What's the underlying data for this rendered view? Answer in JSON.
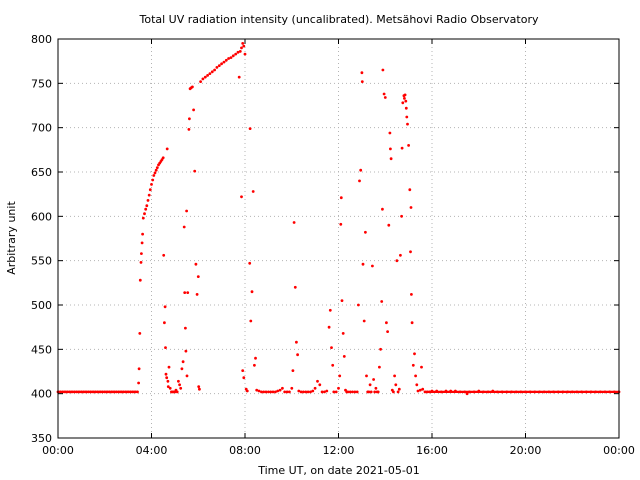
{
  "chart_data": {
    "type": "scatter",
    "title": "Total UV radiation intensity (uncalibrated). Metsähovi Radio Observatory",
    "xlabel": "Time UT, on date 2021-05-01",
    "ylabel": "Arbitrary unit",
    "x_unit": "hours",
    "xlim": [
      0,
      24
    ],
    "ylim": [
      350,
      800
    ],
    "x_ticks": [
      0,
      4,
      8,
      12,
      16,
      20,
      24
    ],
    "x_tick_labels": [
      "00:00",
      "04:00",
      "08:00",
      "12:00",
      "16:00",
      "20:00",
      "00:00"
    ],
    "y_ticks": [
      350,
      400,
      450,
      500,
      550,
      600,
      650,
      700,
      750,
      800
    ],
    "y_tick_labels": [
      "350",
      "400",
      "450",
      "500",
      "550",
      "600",
      "650",
      "700",
      "750",
      "800"
    ],
    "grid": true,
    "legend": "none",
    "marker_color": "#ff0000",
    "series": [
      {
        "points": [
          [
            0.0,
            402
          ],
          [
            0.1,
            402
          ],
          [
            0.2,
            402
          ],
          [
            0.3,
            402
          ],
          [
            0.4,
            402
          ],
          [
            0.5,
            402
          ],
          [
            0.6,
            402
          ],
          [
            0.7,
            402
          ],
          [
            0.8,
            402
          ],
          [
            0.9,
            402
          ],
          [
            1.0,
            402
          ],
          [
            1.1,
            402
          ],
          [
            1.2,
            402
          ],
          [
            1.3,
            402
          ],
          [
            1.4,
            402
          ],
          [
            1.5,
            402
          ],
          [
            1.6,
            402
          ],
          [
            1.7,
            402
          ],
          [
            1.8,
            402
          ],
          [
            1.9,
            402
          ],
          [
            2.0,
            402
          ],
          [
            2.1,
            402
          ],
          [
            2.2,
            402
          ],
          [
            2.3,
            402
          ],
          [
            2.4,
            402
          ],
          [
            2.5,
            402
          ],
          [
            2.6,
            402
          ],
          [
            2.7,
            402
          ],
          [
            2.8,
            402
          ],
          [
            2.9,
            402
          ],
          [
            3.0,
            402
          ],
          [
            3.1,
            402
          ],
          [
            3.2,
            402
          ],
          [
            3.3,
            402
          ],
          [
            3.4,
            402
          ],
          [
            3.45,
            412
          ],
          [
            3.47,
            428
          ],
          [
            3.5,
            468
          ],
          [
            3.52,
            528
          ],
          [
            3.55,
            548
          ],
          [
            3.57,
            558
          ],
          [
            3.6,
            570
          ],
          [
            3.62,
            580
          ],
          [
            3.65,
            598
          ],
          [
            3.7,
            603
          ],
          [
            3.75,
            608
          ],
          [
            3.8,
            612
          ],
          [
            3.85,
            618
          ],
          [
            3.9,
            624
          ],
          [
            3.95,
            630
          ],
          [
            4.0,
            636
          ],
          [
            4.05,
            641
          ],
          [
            4.1,
            646
          ],
          [
            4.15,
            649
          ],
          [
            4.2,
            652
          ],
          [
            4.25,
            655
          ],
          [
            4.3,
            658
          ],
          [
            4.35,
            660
          ],
          [
            4.4,
            662
          ],
          [
            4.45,
            664
          ],
          [
            4.5,
            666
          ],
          [
            4.52,
            556
          ],
          [
            4.55,
            480
          ],
          [
            4.58,
            498
          ],
          [
            4.6,
            452
          ],
          [
            4.62,
            422
          ],
          [
            4.65,
            418
          ],
          [
            4.67,
            676
          ],
          [
            4.7,
            414
          ],
          [
            4.72,
            408
          ],
          [
            4.75,
            430
          ],
          [
            4.8,
            406
          ],
          [
            4.85,
            402
          ],
          [
            4.9,
            402
          ],
          [
            4.95,
            402
          ],
          [
            5.0,
            402
          ],
          [
            5.05,
            404
          ],
          [
            5.1,
            402
          ],
          [
            5.15,
            414
          ],
          [
            5.2,
            410
          ],
          [
            5.25,
            406
          ],
          [
            5.3,
            428
          ],
          [
            5.35,
            436
          ],
          [
            5.4,
            588
          ],
          [
            5.42,
            514
          ],
          [
            5.45,
            474
          ],
          [
            5.47,
            448
          ],
          [
            5.5,
            606
          ],
          [
            5.52,
            420
          ],
          [
            5.55,
            514
          ],
          [
            5.6,
            698
          ],
          [
            5.62,
            710
          ],
          [
            5.65,
            744
          ],
          [
            5.7,
            745
          ],
          [
            5.75,
            746
          ],
          [
            5.8,
            720
          ],
          [
            5.85,
            651
          ],
          [
            5.9,
            546
          ],
          [
            5.95,
            512
          ],
          [
            6.0,
            532
          ],
          [
            6.02,
            408
          ],
          [
            6.05,
            405
          ],
          [
            6.1,
            752
          ],
          [
            6.2,
            755
          ],
          [
            6.3,
            757
          ],
          [
            6.4,
            759
          ],
          [
            6.5,
            761
          ],
          [
            6.6,
            763
          ],
          [
            6.7,
            765
          ],
          [
            6.8,
            768
          ],
          [
            6.9,
            770
          ],
          [
            7.0,
            772
          ],
          [
            7.1,
            774
          ],
          [
            7.2,
            776
          ],
          [
            7.3,
            778
          ],
          [
            7.4,
            779
          ],
          [
            7.5,
            781
          ],
          [
            7.6,
            783
          ],
          [
            7.7,
            785
          ],
          [
            7.8,
            786
          ],
          [
            7.85,
            790
          ],
          [
            7.9,
            795
          ],
          [
            7.95,
            792
          ],
          [
            8.0,
            783
          ],
          [
            7.75,
            757
          ],
          [
            7.85,
            622
          ],
          [
            7.9,
            426
          ],
          [
            7.95,
            418
          ],
          [
            8.05,
            405
          ],
          [
            8.1,
            403
          ],
          [
            8.2,
            547
          ],
          [
            8.22,
            699
          ],
          [
            8.25,
            482
          ],
          [
            8.3,
            515
          ],
          [
            8.35,
            628
          ],
          [
            8.4,
            432
          ],
          [
            8.45,
            440
          ],
          [
            8.5,
            404
          ],
          [
            8.6,
            403
          ],
          [
            8.7,
            402
          ],
          [
            8.8,
            402
          ],
          [
            8.9,
            402
          ],
          [
            9.0,
            402
          ],
          [
            9.1,
            402
          ],
          [
            9.2,
            402
          ],
          [
            9.3,
            402
          ],
          [
            9.4,
            403
          ],
          [
            9.5,
            404
          ],
          [
            9.6,
            406
          ],
          [
            9.7,
            402
          ],
          [
            9.8,
            402
          ],
          [
            9.9,
            402
          ],
          [
            10.0,
            406
          ],
          [
            10.05,
            426
          ],
          [
            10.1,
            593
          ],
          [
            10.15,
            520
          ],
          [
            10.2,
            458
          ],
          [
            10.25,
            444
          ],
          [
            10.3,
            403
          ],
          [
            10.4,
            402
          ],
          [
            10.5,
            402
          ],
          [
            10.6,
            402
          ],
          [
            10.7,
            402
          ],
          [
            10.8,
            402
          ],
          [
            10.9,
            403
          ],
          [
            11.0,
            406
          ],
          [
            11.1,
            414
          ],
          [
            11.2,
            410
          ],
          [
            11.3,
            402
          ],
          [
            11.4,
            402
          ],
          [
            11.5,
            403
          ],
          [
            11.6,
            475
          ],
          [
            11.65,
            494
          ],
          [
            11.7,
            452
          ],
          [
            11.75,
            432
          ],
          [
            11.8,
            402
          ],
          [
            11.9,
            402
          ],
          [
            12.0,
            406
          ],
          [
            12.05,
            420
          ],
          [
            12.1,
            591
          ],
          [
            12.12,
            621
          ],
          [
            12.15,
            505
          ],
          [
            12.2,
            468
          ],
          [
            12.25,
            442
          ],
          [
            12.3,
            404
          ],
          [
            12.35,
            402
          ],
          [
            12.4,
            402
          ],
          [
            12.5,
            402
          ],
          [
            12.6,
            402
          ],
          [
            12.7,
            402
          ],
          [
            12.8,
            402
          ],
          [
            12.85,
            500
          ],
          [
            12.9,
            640
          ],
          [
            12.95,
            652
          ],
          [
            13.0,
            762
          ],
          [
            13.02,
            752
          ],
          [
            13.05,
            546
          ],
          [
            13.1,
            482
          ],
          [
            13.15,
            582
          ],
          [
            13.2,
            420
          ],
          [
            13.25,
            402
          ],
          [
            13.3,
            402
          ],
          [
            13.35,
            410
          ],
          [
            13.4,
            402
          ],
          [
            13.45,
            544
          ],
          [
            13.5,
            416
          ],
          [
            13.55,
            402
          ],
          [
            13.6,
            406
          ],
          [
            13.65,
            402
          ],
          [
            13.7,
            402
          ],
          [
            13.75,
            430
          ],
          [
            13.8,
            450
          ],
          [
            13.85,
            504
          ],
          [
            13.88,
            608
          ],
          [
            13.9,
            765
          ],
          [
            13.95,
            738
          ],
          [
            14.0,
            734
          ],
          [
            14.05,
            480
          ],
          [
            14.1,
            470
          ],
          [
            14.15,
            590
          ],
          [
            14.2,
            694
          ],
          [
            14.22,
            676
          ],
          [
            14.25,
            665
          ],
          [
            14.3,
            404
          ],
          [
            14.35,
            402
          ],
          [
            14.4,
            420
          ],
          [
            14.45,
            410
          ],
          [
            14.5,
            550
          ],
          [
            14.55,
            402
          ],
          [
            14.6,
            405
          ],
          [
            14.65,
            556
          ],
          [
            14.7,
            600
          ],
          [
            14.72,
            677
          ],
          [
            14.75,
            728
          ],
          [
            14.8,
            736
          ],
          [
            14.82,
            733
          ],
          [
            14.85,
            737
          ],
          [
            14.88,
            730
          ],
          [
            14.9,
            722
          ],
          [
            14.92,
            712
          ],
          [
            14.95,
            704
          ],
          [
            15.0,
            680
          ],
          [
            15.05,
            630
          ],
          [
            15.08,
            560
          ],
          [
            15.1,
            610
          ],
          [
            15.12,
            512
          ],
          [
            15.15,
            480
          ],
          [
            15.2,
            432
          ],
          [
            15.25,
            445
          ],
          [
            15.3,
            420
          ],
          [
            15.35,
            410
          ],
          [
            15.4,
            403
          ],
          [
            15.5,
            404
          ],
          [
            15.55,
            430
          ],
          [
            15.6,
            405
          ],
          [
            15.7,
            402
          ],
          [
            15.8,
            402
          ],
          [
            15.9,
            402
          ],
          [
            16.0,
            403
          ],
          [
            16.2,
            403
          ],
          [
            16.4,
            402
          ],
          [
            16.6,
            403
          ],
          [
            16.8,
            403
          ],
          [
            17.0,
            403
          ],
          [
            17.2,
            402
          ],
          [
            17.4,
            402
          ],
          [
            17.5,
            400
          ],
          [
            17.6,
            402
          ],
          [
            17.8,
            402
          ],
          [
            18.0,
            403
          ],
          [
            18.2,
            402
          ],
          [
            18.4,
            402
          ],
          [
            18.6,
            403
          ],
          [
            18.8,
            402
          ],
          [
            19.0,
            402
          ],
          [
            19.2,
            402
          ],
          [
            19.4,
            402
          ],
          [
            19.6,
            402
          ],
          [
            19.8,
            402
          ],
          [
            20.0,
            402
          ],
          [
            20.2,
            402
          ],
          [
            20.4,
            402
          ],
          [
            20.6,
            402
          ],
          [
            20.8,
            402
          ],
          [
            21.0,
            402
          ],
          [
            21.2,
            402
          ],
          [
            21.4,
            402
          ],
          [
            21.6,
            402
          ],
          [
            21.8,
            402
          ],
          [
            22.0,
            402
          ],
          [
            22.2,
            402
          ],
          [
            22.4,
            402
          ],
          [
            22.6,
            402
          ],
          [
            22.8,
            402
          ],
          [
            23.0,
            402
          ],
          [
            23.2,
            402
          ],
          [
            23.4,
            402
          ],
          [
            23.6,
            402
          ],
          [
            23.8,
            402
          ],
          [
            24.0,
            402
          ]
        ]
      }
    ]
  }
}
